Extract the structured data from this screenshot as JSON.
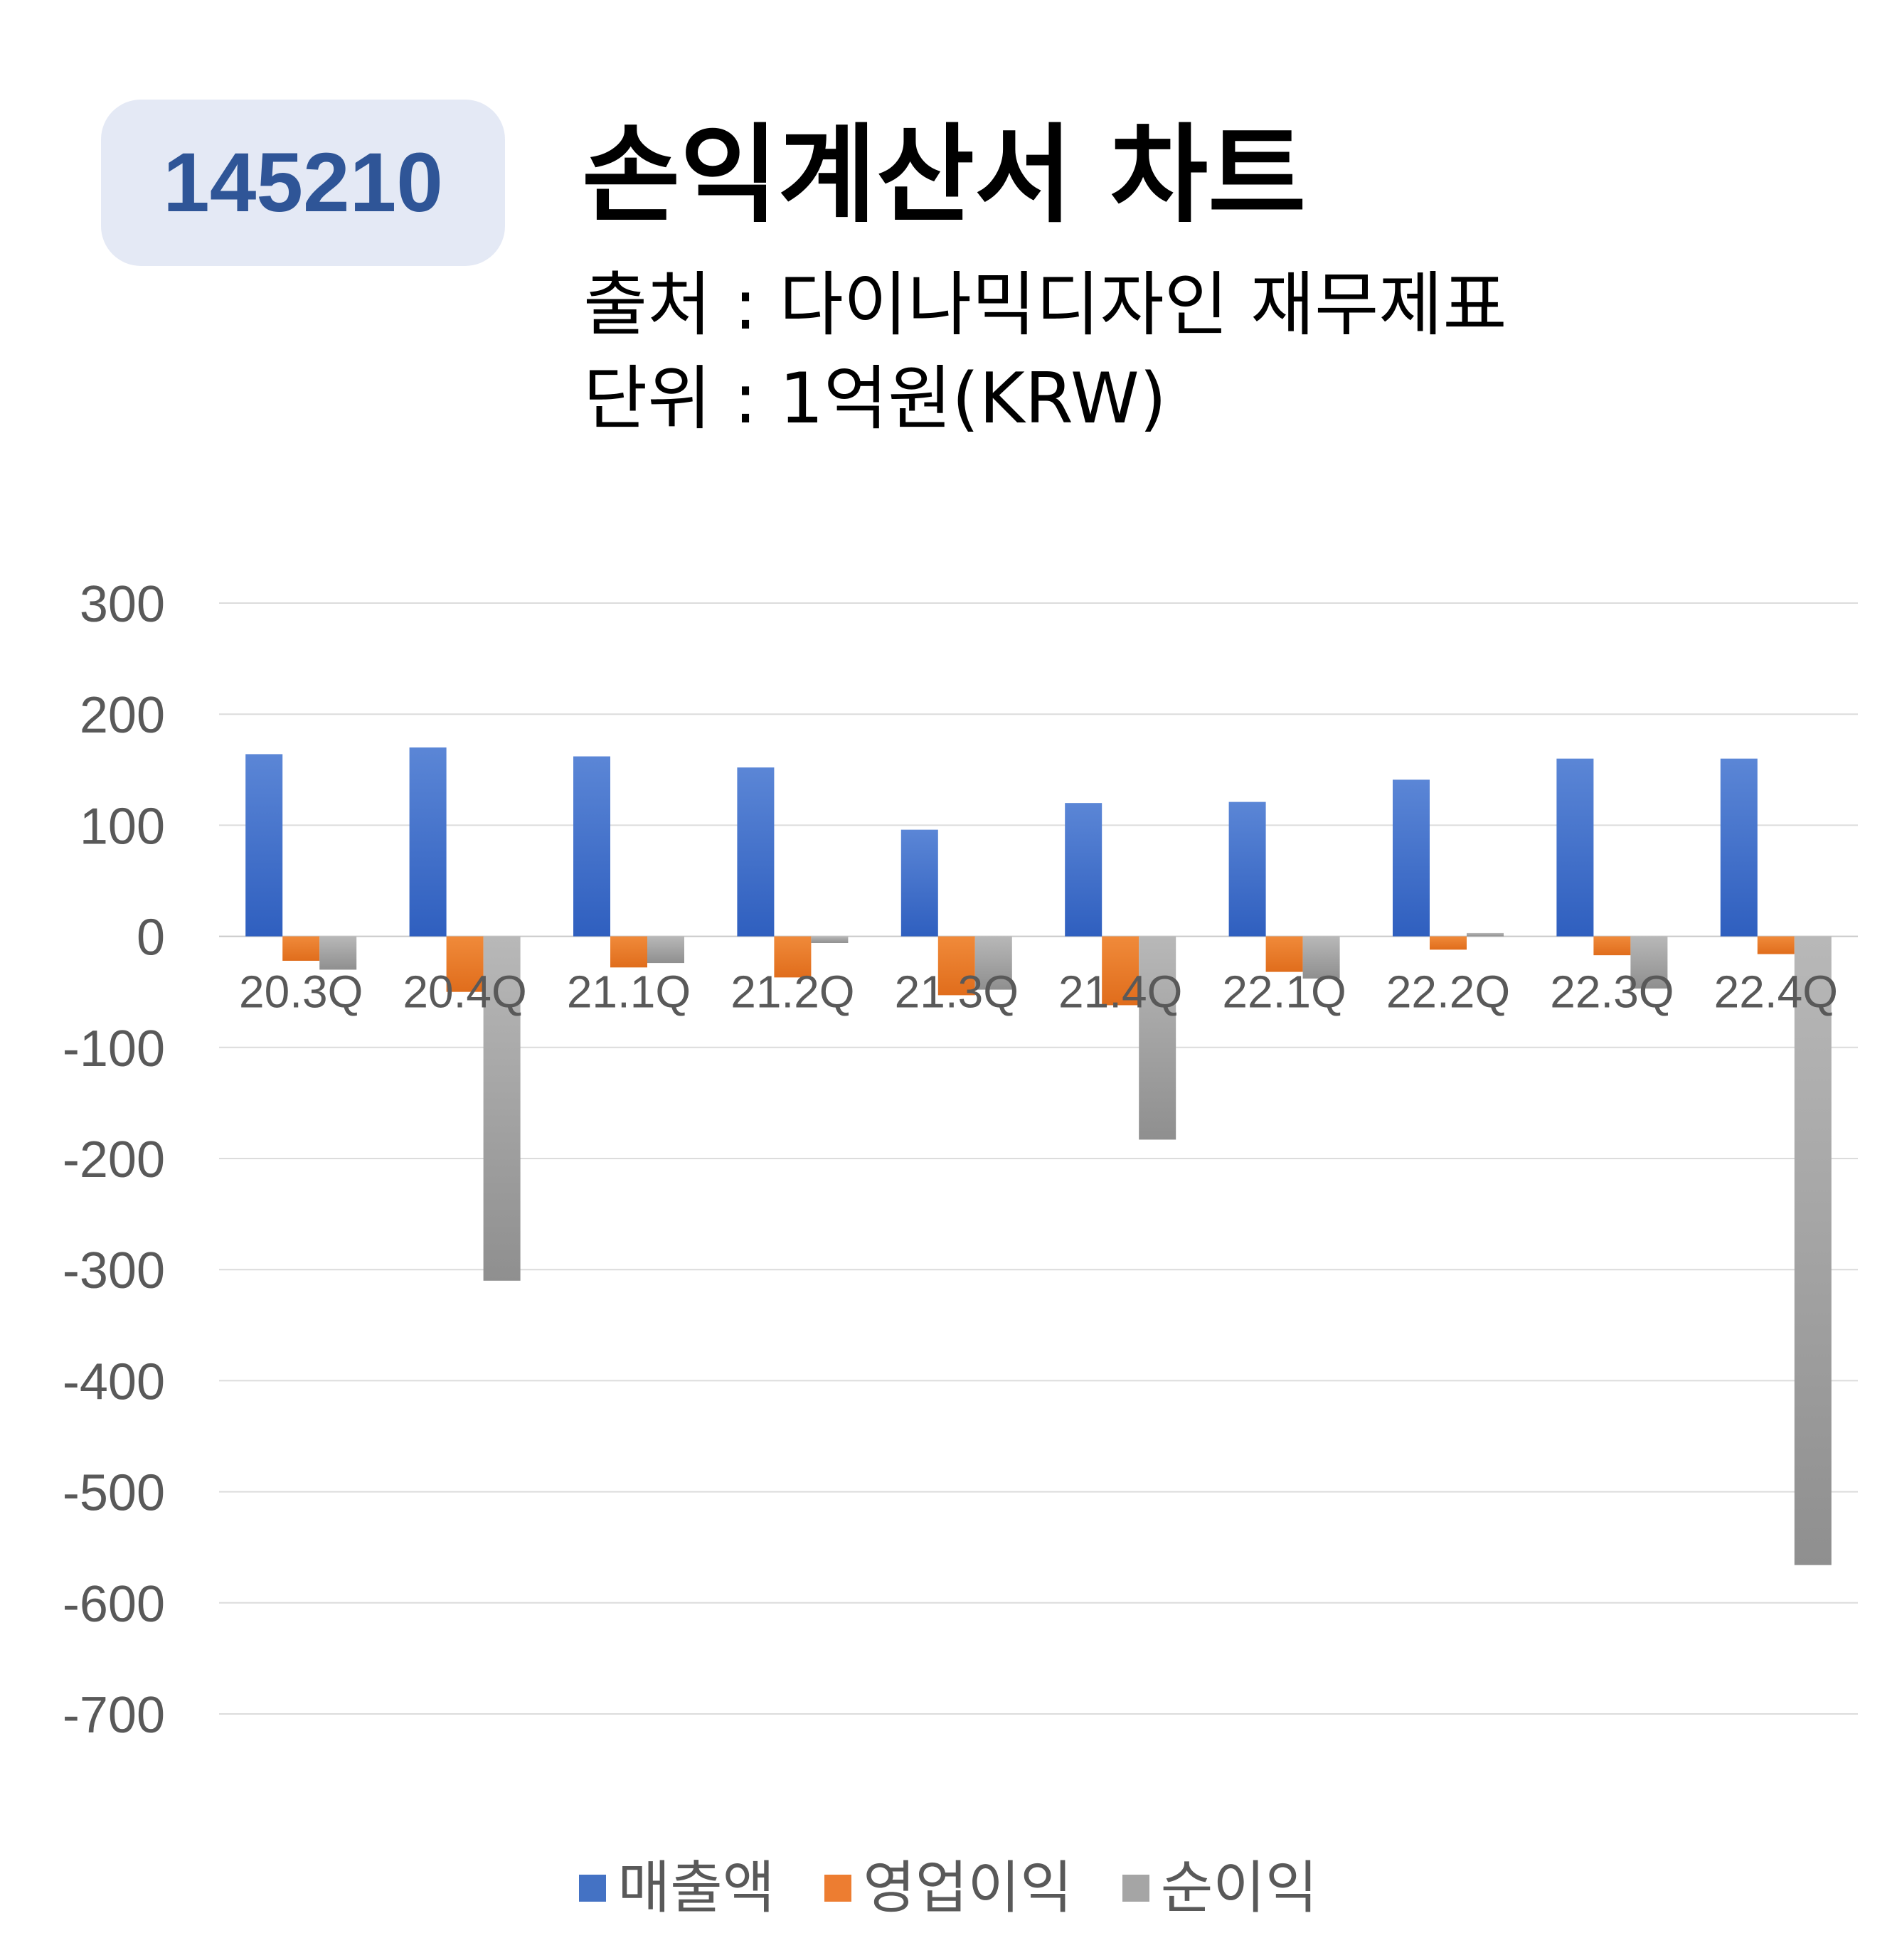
{
  "header": {
    "code": "145210",
    "title": "손익계산서 차트",
    "source": "출처 : 다이나믹디자인 재무제표",
    "unit": "단위 : 1억원(KRW)"
  },
  "chart_data": {
    "type": "bar",
    "categories": [
      "20.3Q",
      "20.4Q",
      "21.1Q",
      "21.2Q",
      "21.3Q",
      "21.4Q",
      "22.1Q",
      "22.2Q",
      "22.3Q",
      "22.4Q"
    ],
    "series": [
      {
        "name": "매출액",
        "color": "#4472c4",
        "values": [
          164,
          170,
          162,
          152,
          96,
          120,
          121,
          141,
          160,
          160
        ]
      },
      {
        "name": "영업이익",
        "color": "#ed7d31",
        "values": [
          -22,
          -50,
          -28,
          -37,
          -53,
          -62,
          -32,
          -12,
          -17,
          -16
        ]
      },
      {
        "name": "순이익",
        "color": "#a5a5a5",
        "values": [
          -30,
          -310,
          -24,
          -6,
          -48,
          -183,
          -38,
          3,
          -47,
          -566
        ]
      }
    ],
    "yticks": [
      300,
      200,
      100,
      0,
      -100,
      -200,
      -300,
      -400,
      -500,
      -600,
      -700
    ],
    "ylim": [
      -700,
      300
    ],
    "grid": true,
    "legend_position": "bottom"
  }
}
